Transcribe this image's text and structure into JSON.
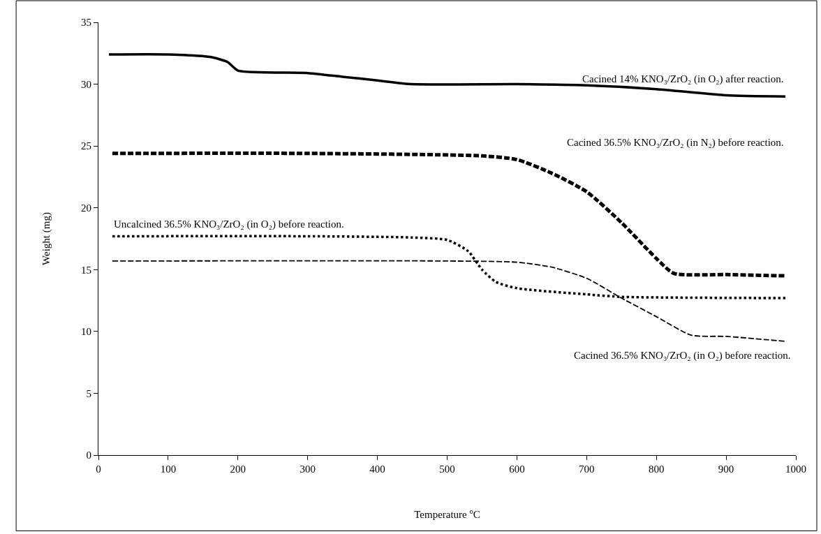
{
  "chart_data": {
    "type": "line",
    "xlabel": "Temperature $^{o}$C",
    "ylabel": "Weight (mg)",
    "xlim": [
      0,
      1000
    ],
    "xticks": [
      0,
      100,
      200,
      300,
      400,
      500,
      600,
      700,
      800,
      900,
      1000
    ],
    "ylim": [
      0,
      35
    ],
    "yticks": [
      0,
      5,
      10,
      15,
      20,
      25,
      30,
      35
    ],
    "marker": "none",
    "series": [
      {
        "name": "Cacined 14% KNO₃/ZrO₂ (in O₂) after reaction.",
        "color": "#000000",
        "line_style": "solid",
        "x": [
          15,
          100,
          160,
          185,
          200,
          300,
          350,
          400,
          450,
          600,
          700,
          800,
          900,
          985
        ],
        "values": [
          32.4,
          32.4,
          32.2,
          31.8,
          31.1,
          30.9,
          30.6,
          30.3,
          30.0,
          30.0,
          29.9,
          29.6,
          29.1,
          29.0
        ]
      },
      {
        "name": "Cacined 36.5% KNO₃/ZrO₂ (in N₂) before reaction.",
        "color": "#000000",
        "line_style": "dashed",
        "x": [
          20,
          300,
          550,
          600,
          650,
          700,
          750,
          800,
          825,
          900,
          985
        ],
        "values": [
          24.4,
          24.4,
          24.2,
          23.9,
          22.8,
          21.3,
          18.8,
          15.9,
          14.7,
          14.6,
          14.5
        ]
      },
      {
        "name": "Uncalcined 36.5% KNO₃/ZrO₂ (in O₂) before reaction.",
        "color": "#000000",
        "line_style": "dotted",
        "x": [
          20,
          300,
          450,
          500,
          530,
          550,
          570,
          600,
          700,
          750,
          985
        ],
        "values": [
          17.7,
          17.7,
          17.6,
          17.4,
          16.5,
          15.0,
          14.0,
          13.5,
          13.0,
          12.8,
          12.7
        ]
      },
      {
        "name": "Cacined 36.5% KNO₃/ZrO₂ (in O₂) before reaction.",
        "color": "#000000",
        "line_style": "dashed",
        "x": [
          20,
          500,
          600,
          650,
          700,
          750,
          800,
          850,
          900,
          985
        ],
        "values": [
          15.7,
          15.7,
          15.6,
          15.2,
          14.3,
          12.7,
          11.2,
          9.7,
          9.6,
          9.2
        ]
      }
    ]
  }
}
